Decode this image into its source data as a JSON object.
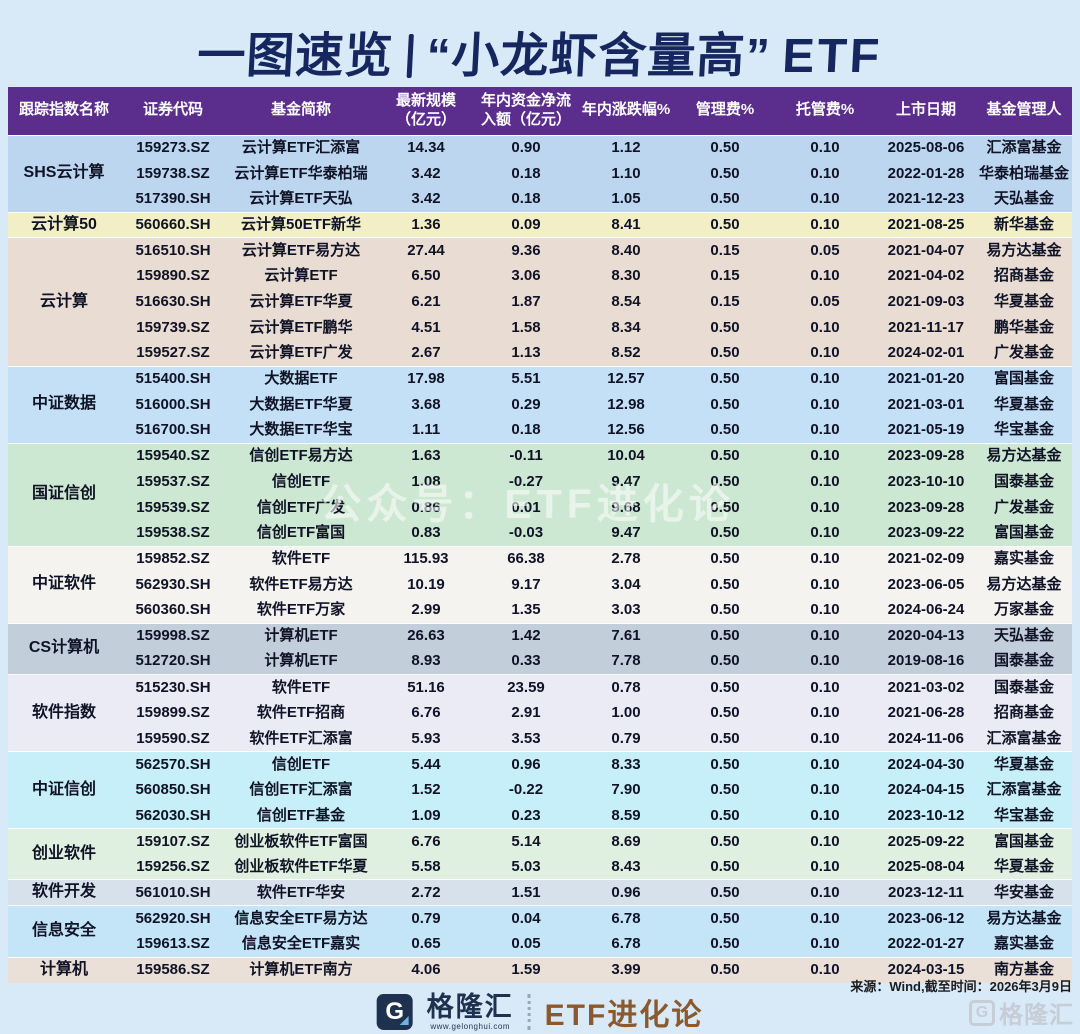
{
  "title": {
    "part1": "一图速览",
    "part2": "“小龙虾含量高”",
    "part3": "ETF"
  },
  "table": {
    "headers": [
      "跟踪指数名称",
      "证券代码",
      "基金简称",
      "最新规模\n（亿元）",
      "年内资金净流\n入额（亿元）",
      "年内涨跌幅%",
      "管理费%",
      "托管费%",
      "上市日期",
      "基金管理人"
    ],
    "header_bg": "#5B2D8C",
    "groups": [
      {
        "index_name": "SHS云计算",
        "color": "#BDD6F0",
        "rows": [
          [
            "159273.SZ",
            "云计算ETF汇添富",
            "14.34",
            "0.90",
            "1.12",
            "0.50",
            "0.10",
            "2025-08-06",
            "汇添富基金"
          ],
          [
            "159738.SZ",
            "云计算ETF华泰柏瑞",
            "3.42",
            "0.18",
            "1.10",
            "0.50",
            "0.10",
            "2022-01-28",
            "华泰柏瑞基金"
          ],
          [
            "517390.SH",
            "云计算ETF天弘",
            "3.42",
            "0.18",
            "1.05",
            "0.50",
            "0.10",
            "2021-12-23",
            "天弘基金"
          ]
        ]
      },
      {
        "index_name": "云计算50",
        "color": "#F2EFC6",
        "rows": [
          [
            "560660.SH",
            "云计算50ETF新华",
            "1.36",
            "0.09",
            "8.41",
            "0.50",
            "0.10",
            "2021-08-25",
            "新华基金"
          ]
        ]
      },
      {
        "index_name": "云计算",
        "color": "#E9DCD3",
        "rows": [
          [
            "516510.SH",
            "云计算ETF易方达",
            "27.44",
            "9.36",
            "8.40",
            "0.15",
            "0.05",
            "2021-04-07",
            "易方达基金"
          ],
          [
            "159890.SZ",
            "云计算ETF",
            "6.50",
            "3.06",
            "8.30",
            "0.15",
            "0.10",
            "2021-04-02",
            "招商基金"
          ],
          [
            "516630.SH",
            "云计算ETF华夏",
            "6.21",
            "1.87",
            "8.54",
            "0.15",
            "0.05",
            "2021-09-03",
            "华夏基金"
          ],
          [
            "159739.SZ",
            "云计算ETF鹏华",
            "4.51",
            "1.58",
            "8.34",
            "0.50",
            "0.10",
            "2021-11-17",
            "鹏华基金"
          ],
          [
            "159527.SZ",
            "云计算ETF广发",
            "2.67",
            "1.13",
            "8.52",
            "0.50",
            "0.10",
            "2024-02-01",
            "广发基金"
          ]
        ]
      },
      {
        "index_name": "中证数据",
        "color": "#C4E0F6",
        "rows": [
          [
            "515400.SH",
            "大数据ETF",
            "17.98",
            "5.51",
            "12.57",
            "0.50",
            "0.10",
            "2021-01-20",
            "富国基金"
          ],
          [
            "516000.SH",
            "大数据ETF华夏",
            "3.68",
            "0.29",
            "12.98",
            "0.50",
            "0.10",
            "2021-03-01",
            "华夏基金"
          ],
          [
            "516700.SH",
            "大数据ETF华宝",
            "1.11",
            "0.18",
            "12.56",
            "0.50",
            "0.10",
            "2021-05-19",
            "华宝基金"
          ]
        ]
      },
      {
        "index_name": "国证信创",
        "color": "#CDE8D2",
        "rows": [
          [
            "159540.SZ",
            "信创ETF易方达",
            "1.63",
            "-0.11",
            "10.04",
            "0.50",
            "0.10",
            "2023-09-28",
            "易方达基金"
          ],
          [
            "159537.SZ",
            "信创ETF",
            "1.08",
            "-0.27",
            "9.47",
            "0.50",
            "0.10",
            "2023-10-10",
            "国泰基金"
          ],
          [
            "159539.SZ",
            "信创ETF广发",
            "0.86",
            "0.01",
            "9.68",
            "0.50",
            "0.10",
            "2023-09-28",
            "广发基金"
          ],
          [
            "159538.SZ",
            "信创ETF富国",
            "0.83",
            "-0.03",
            "9.47",
            "0.50",
            "0.10",
            "2023-09-22",
            "富国基金"
          ]
        ]
      },
      {
        "index_name": "中证软件",
        "color": "#F4F3F0",
        "rows": [
          [
            "159852.SZ",
            "软件ETF",
            "115.93",
            "66.38",
            "2.78",
            "0.50",
            "0.10",
            "2021-02-09",
            "嘉实基金"
          ],
          [
            "562930.SH",
            "软件ETF易方达",
            "10.19",
            "9.17",
            "3.04",
            "0.50",
            "0.10",
            "2023-06-05",
            "易方达基金"
          ],
          [
            "560360.SH",
            "软件ETF万家",
            "2.99",
            "1.35",
            "3.03",
            "0.50",
            "0.10",
            "2024-06-24",
            "万家基金"
          ]
        ]
      },
      {
        "index_name": "CS计算机",
        "color": "#C3CEDB",
        "rows": [
          [
            "159998.SZ",
            "计算机ETF",
            "26.63",
            "1.42",
            "7.61",
            "0.50",
            "0.10",
            "2020-04-13",
            "天弘基金"
          ],
          [
            "512720.SH",
            "计算机ETF",
            "8.93",
            "0.33",
            "7.78",
            "0.50",
            "0.10",
            "2019-08-16",
            "国泰基金"
          ]
        ]
      },
      {
        "index_name": "软件指数",
        "color": "#EBEBF5",
        "rows": [
          [
            "515230.SH",
            "软件ETF",
            "51.16",
            "23.59",
            "0.78",
            "0.50",
            "0.10",
            "2021-03-02",
            "国泰基金"
          ],
          [
            "159899.SZ",
            "软件ETF招商",
            "6.76",
            "2.91",
            "1.00",
            "0.50",
            "0.10",
            "2021-06-28",
            "招商基金"
          ],
          [
            "159590.SZ",
            "软件ETF汇添富",
            "5.93",
            "3.53",
            "0.79",
            "0.50",
            "0.10",
            "2024-11-06",
            "汇添富基金"
          ]
        ]
      },
      {
        "index_name": "中证信创",
        "color": "#C7EFF9",
        "rows": [
          [
            "562570.SH",
            "信创ETF",
            "5.44",
            "0.96",
            "8.33",
            "0.50",
            "0.10",
            "2024-04-30",
            "华夏基金"
          ],
          [
            "560850.SH",
            "信创ETF汇添富",
            "1.52",
            "-0.22",
            "7.90",
            "0.50",
            "0.10",
            "2024-04-15",
            "汇添富基金"
          ],
          [
            "562030.SH",
            "信创ETF基金",
            "1.09",
            "0.23",
            "8.59",
            "0.50",
            "0.10",
            "2023-10-12",
            "华宝基金"
          ]
        ]
      },
      {
        "index_name": "创业软件",
        "color": "#DFF0E1",
        "rows": [
          [
            "159107.SZ",
            "创业板软件ETF富国",
            "6.76",
            "5.14",
            "8.69",
            "0.50",
            "0.10",
            "2025-09-22",
            "富国基金"
          ],
          [
            "159256.SZ",
            "创业板软件ETF华夏",
            "5.58",
            "5.03",
            "8.43",
            "0.50",
            "0.10",
            "2025-08-04",
            "华夏基金"
          ]
        ]
      },
      {
        "index_name": "软件开发",
        "color": "#D7E1EB",
        "rows": [
          [
            "561010.SH",
            "软件ETF华安",
            "2.72",
            "1.51",
            "0.96",
            "0.50",
            "0.10",
            "2023-12-11",
            "华安基金"
          ]
        ]
      },
      {
        "index_name": "信息安全",
        "color": "#C4E4F8",
        "rows": [
          [
            "562920.SH",
            "信息安全ETF易方达",
            "0.79",
            "0.04",
            "6.78",
            "0.50",
            "0.10",
            "2023-06-12",
            "易方达基金"
          ],
          [
            "159613.SZ",
            "信息安全ETF嘉实",
            "0.65",
            "0.05",
            "6.78",
            "0.50",
            "0.10",
            "2022-01-27",
            "嘉实基金"
          ]
        ]
      },
      {
        "index_name": "计算机",
        "color": "#EAE0D7",
        "rows": [
          [
            "159586.SZ",
            "计算机ETF南方",
            "4.06",
            "1.59",
            "3.99",
            "0.50",
            "0.10",
            "2024-03-15",
            "南方基金"
          ]
        ]
      }
    ]
  },
  "watermark_text": "公众号：ETF进化论",
  "source_note": "来源：Wind,截至时间：2026年3月9日",
  "footer": {
    "logo_letter": "G",
    "brand": "格隆汇",
    "brand_url": "www.gelonghui.com",
    "channel": "ETF进化论",
    "corner_logo_letter": "G",
    "corner_brand": "格隆汇"
  },
  "colors": {
    "page_bg": "#D8E9F8",
    "header_purple": "#5B2D8C",
    "title_navy": "#16265E",
    "channel_brown": "#8A5A2E"
  }
}
